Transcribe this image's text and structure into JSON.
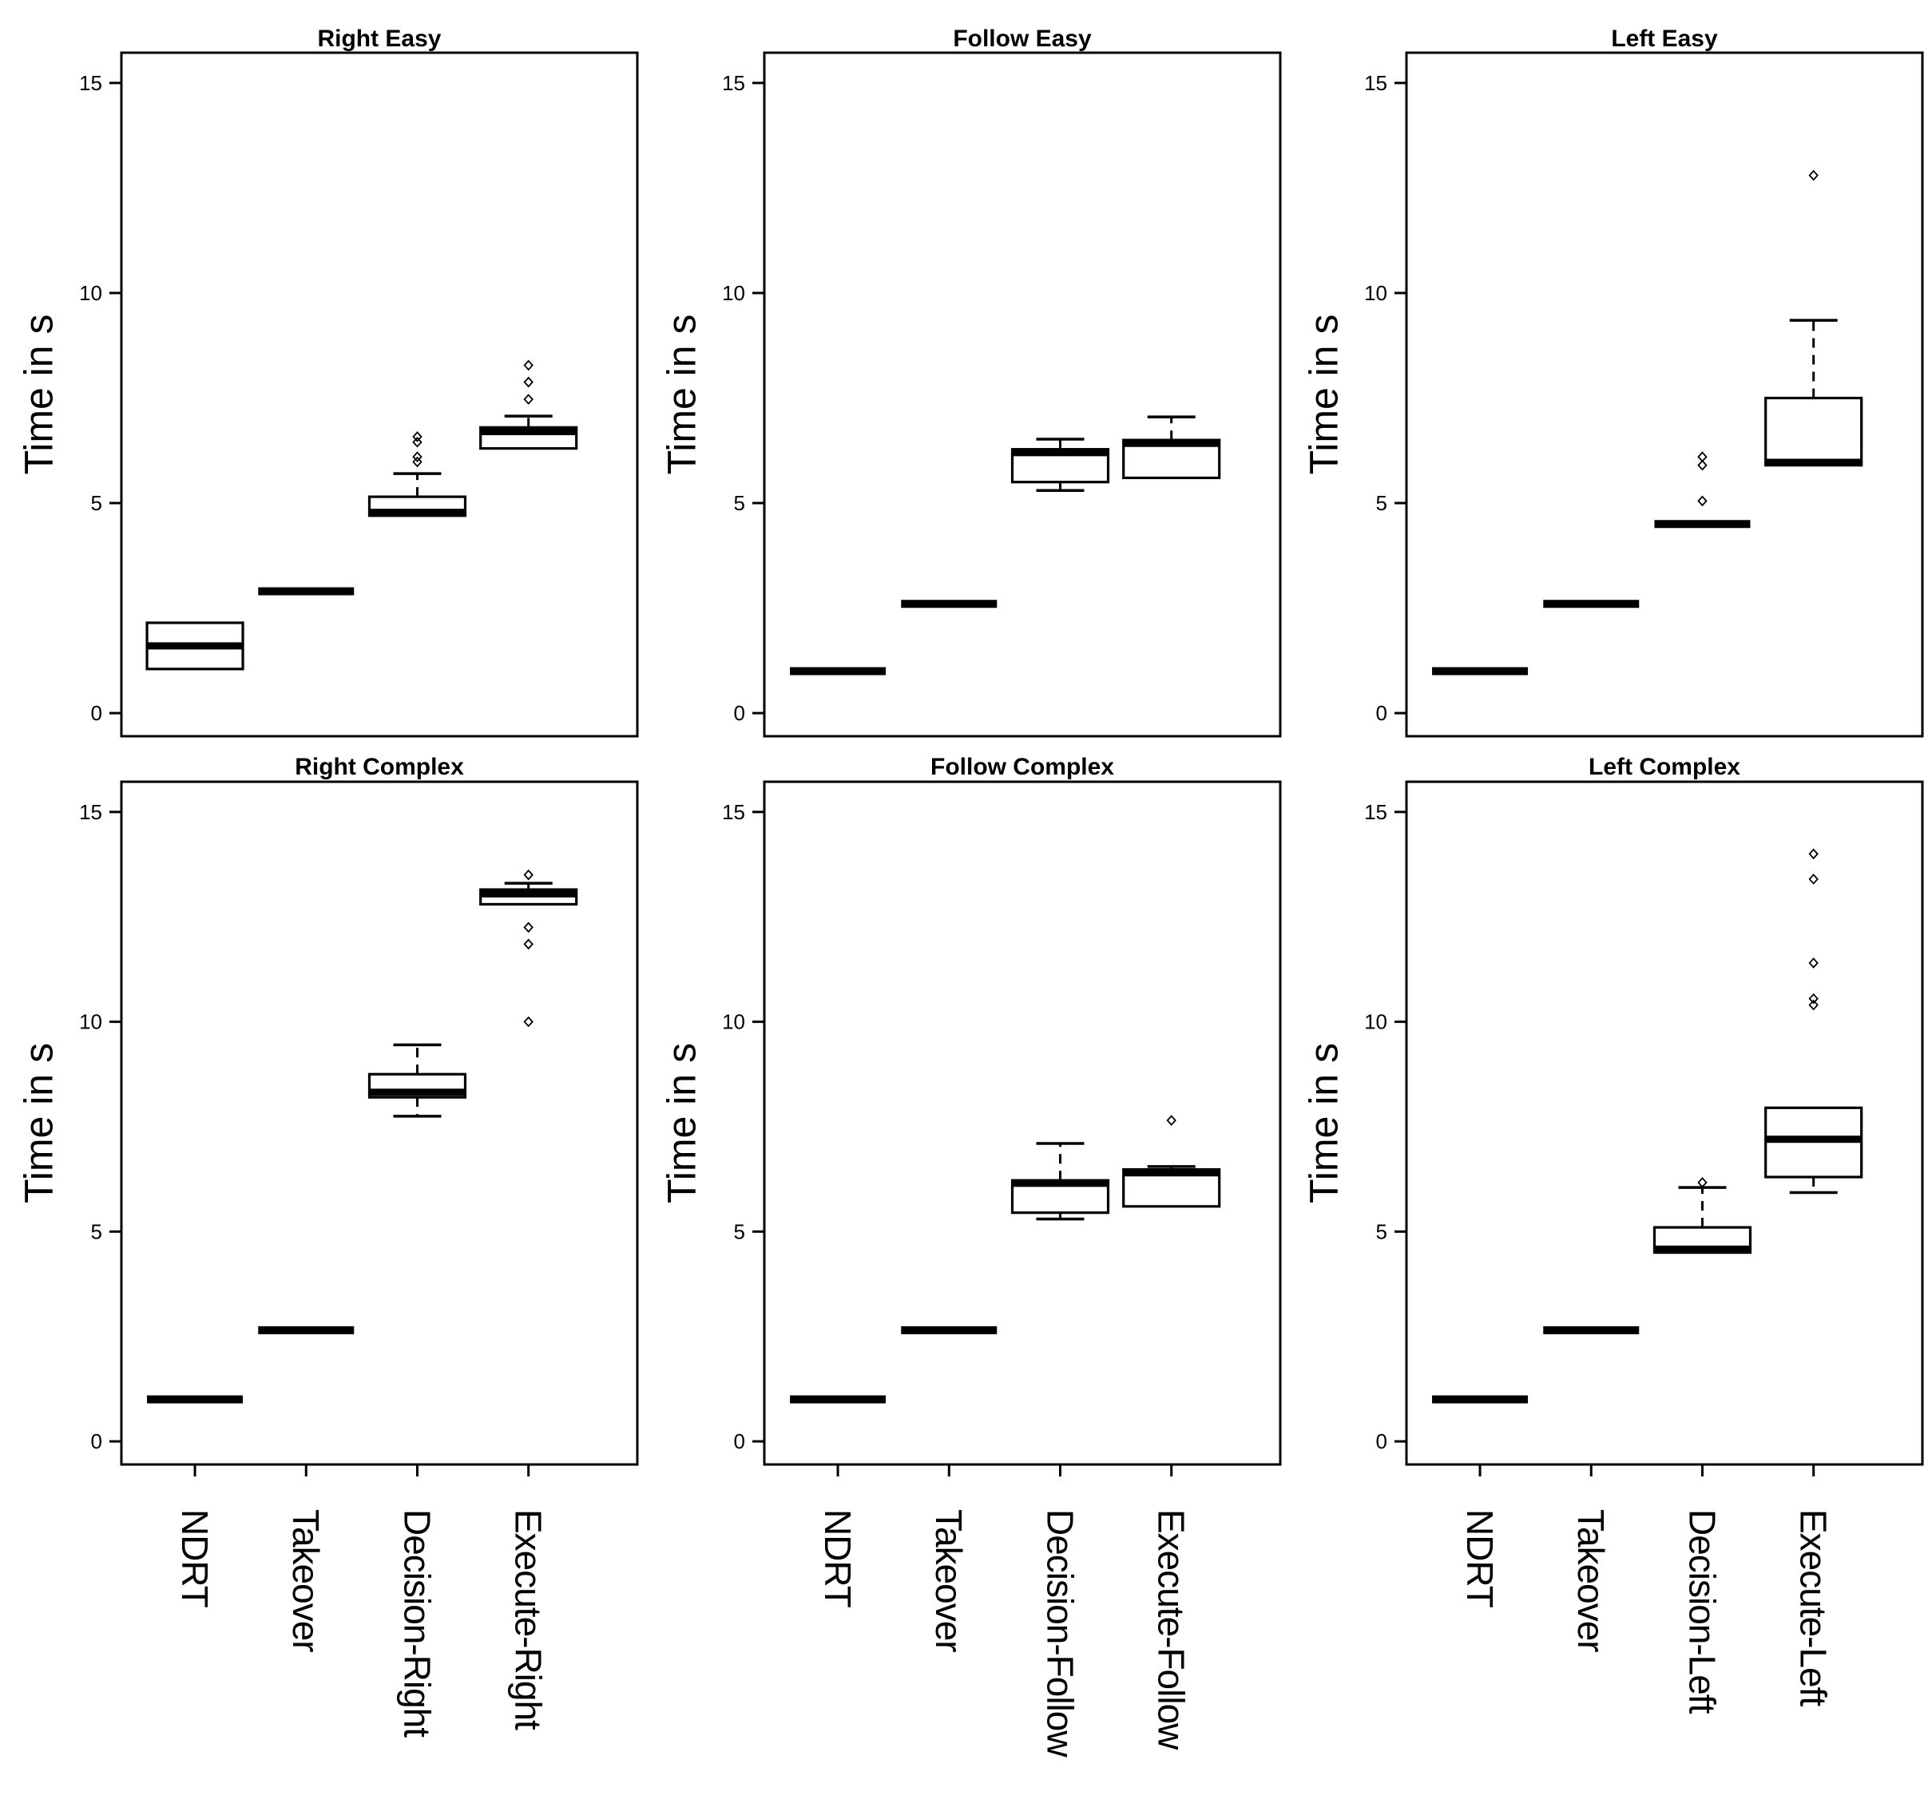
{
  "figure": {
    "ylabel": "Time in s",
    "yticks": [
      0,
      5,
      10,
      15
    ],
    "ylim": [
      -0.55,
      15.72
    ],
    "grid": "off",
    "legend": "none",
    "ink_color": "#000000",
    "background_color": "#ffffff"
  },
  "chart_data": [
    {
      "type": "boxplot",
      "title": "Right Easy",
      "row": "top",
      "show_x_labels": false,
      "ylabel": "Time in s",
      "yticks": [
        0,
        5,
        10,
        15
      ],
      "categories": [
        "NDRT",
        "Takeover",
        "Decision-Right",
        "Execute-Right"
      ],
      "boxes": [
        {
          "category": "NDRT",
          "low": 1.05,
          "q1": 1.05,
          "median": 1.6,
          "q3": 2.15,
          "high": 2.15,
          "outliers": []
        },
        {
          "category": "Takeover",
          "low": 2.9,
          "q1": 2.9,
          "median": 2.9,
          "q3": 2.9,
          "high": 2.9,
          "outliers": []
        },
        {
          "category": "Decision-Right",
          "low": 4.7,
          "q1": 4.7,
          "median": 4.78,
          "q3": 5.15,
          "high": 5.7,
          "outliers": [
            5.98,
            6.1,
            6.45,
            6.58
          ]
        },
        {
          "category": "Execute-Right",
          "low": 6.3,
          "q1": 6.3,
          "median": 6.7,
          "q3": 6.8,
          "high": 7.07,
          "outliers": [
            7.47,
            7.88,
            8.28
          ]
        }
      ]
    },
    {
      "type": "boxplot",
      "title": "Follow Easy",
      "row": "top",
      "show_x_labels": false,
      "ylabel": "Time in s",
      "yticks": [
        0,
        5,
        10,
        15
      ],
      "categories": [
        "NDRT",
        "Takeover",
        "Decision-Follow",
        "Execute-Follow"
      ],
      "boxes": [
        {
          "category": "NDRT",
          "low": 1.0,
          "q1": 1.0,
          "median": 1.0,
          "q3": 1.0,
          "high": 1.0,
          "outliers": []
        },
        {
          "category": "Takeover",
          "low": 2.6,
          "q1": 2.6,
          "median": 2.6,
          "q3": 2.6,
          "high": 2.6,
          "outliers": []
        },
        {
          "category": "Decision-Follow",
          "low": 5.3,
          "q1": 5.5,
          "median": 6.2,
          "q3": 6.28,
          "high": 6.52,
          "outliers": []
        },
        {
          "category": "Execute-Follow",
          "low": 5.6,
          "q1": 5.6,
          "median": 6.42,
          "q3": 6.5,
          "high": 7.05,
          "outliers": []
        }
      ]
    },
    {
      "type": "boxplot",
      "title": "Left Easy",
      "row": "top",
      "show_x_labels": false,
      "ylabel": "Time in s",
      "yticks": [
        0,
        5,
        10,
        15
      ],
      "categories": [
        "NDRT",
        "Takeover",
        "Decision-Left",
        "Execute-Left"
      ],
      "boxes": [
        {
          "category": "NDRT",
          "low": 1.0,
          "q1": 1.0,
          "median": 1.0,
          "q3": 1.0,
          "high": 1.0,
          "outliers": []
        },
        {
          "category": "Takeover",
          "low": 2.6,
          "q1": 2.6,
          "median": 2.6,
          "q3": 2.6,
          "high": 2.6,
          "outliers": []
        },
        {
          "category": "Decision-Left",
          "low": 4.5,
          "q1": 4.5,
          "median": 4.5,
          "q3": 4.5,
          "high": 4.5,
          "outliers": [
            5.05,
            5.9,
            6.1
          ]
        },
        {
          "category": "Execute-Left",
          "low": 5.9,
          "q1": 5.9,
          "median": 5.97,
          "q3": 7.5,
          "high": 9.35,
          "outliers": [
            12.8
          ]
        }
      ]
    },
    {
      "type": "boxplot",
      "title": "Right Complex",
      "row": "bottom",
      "show_x_labels": true,
      "ylabel": "Time in s",
      "yticks": [
        0,
        5,
        10,
        15
      ],
      "categories": [
        "NDRT",
        "Takeover",
        "Decision-Right",
        "Execute-Right"
      ],
      "boxes": [
        {
          "category": "NDRT",
          "low": 1.0,
          "q1": 1.0,
          "median": 1.0,
          "q3": 1.0,
          "high": 1.0,
          "outliers": []
        },
        {
          "category": "Takeover",
          "low": 2.65,
          "q1": 2.65,
          "median": 2.65,
          "q3": 2.65,
          "high": 2.65,
          "outliers": []
        },
        {
          "category": "Decision-Right",
          "low": 7.75,
          "q1": 8.2,
          "median": 8.32,
          "q3": 8.75,
          "high": 9.45,
          "outliers": []
        },
        {
          "category": "Execute-Right",
          "low": 12.8,
          "q1": 12.8,
          "median": 13.05,
          "q3": 13.15,
          "high": 13.3,
          "outliers": [
            13.5,
            12.25,
            11.85,
            10.0
          ]
        }
      ]
    },
    {
      "type": "boxplot",
      "title": "Follow Complex",
      "row": "bottom",
      "show_x_labels": true,
      "ylabel": "Time in s",
      "yticks": [
        0,
        5,
        10,
        15
      ],
      "categories": [
        "NDRT",
        "Takeover",
        "Decision-Follow",
        "Execute-Follow"
      ],
      "boxes": [
        {
          "category": "NDRT",
          "low": 1.0,
          "q1": 1.0,
          "median": 1.0,
          "q3": 1.0,
          "high": 1.0,
          "outliers": []
        },
        {
          "category": "Takeover",
          "low": 2.65,
          "q1": 2.65,
          "median": 2.65,
          "q3": 2.65,
          "high": 2.65,
          "outliers": []
        },
        {
          "category": "Decision-Follow",
          "low": 5.3,
          "q1": 5.45,
          "median": 6.15,
          "q3": 6.22,
          "high": 7.1,
          "outliers": []
        },
        {
          "category": "Execute-Follow",
          "low": 5.6,
          "q1": 5.6,
          "median": 6.4,
          "q3": 6.48,
          "high": 6.55,
          "outliers": [
            7.65
          ]
        }
      ]
    },
    {
      "type": "boxplot",
      "title": "Left Complex",
      "row": "bottom",
      "show_x_labels": true,
      "ylabel": "Time in s",
      "yticks": [
        0,
        5,
        10,
        15
      ],
      "categories": [
        "NDRT",
        "Takeover",
        "Decision-Left",
        "Execute-Left"
      ],
      "boxes": [
        {
          "category": "NDRT",
          "low": 1.0,
          "q1": 1.0,
          "median": 1.0,
          "q3": 1.0,
          "high": 1.0,
          "outliers": []
        },
        {
          "category": "Takeover",
          "low": 2.65,
          "q1": 2.65,
          "median": 2.65,
          "q3": 2.65,
          "high": 2.65,
          "outliers": []
        },
        {
          "category": "Decision-Left",
          "low": 4.5,
          "q1": 4.5,
          "median": 4.58,
          "q3": 5.1,
          "high": 6.05,
          "outliers": [
            6.17
          ]
        },
        {
          "category": "Execute-Left",
          "low": 5.93,
          "q1": 6.3,
          "median": 7.2,
          "q3": 7.95,
          "high": 7.95,
          "outliers": [
            10.4,
            10.55,
            11.4,
            13.4,
            14.0
          ]
        }
      ]
    }
  ]
}
